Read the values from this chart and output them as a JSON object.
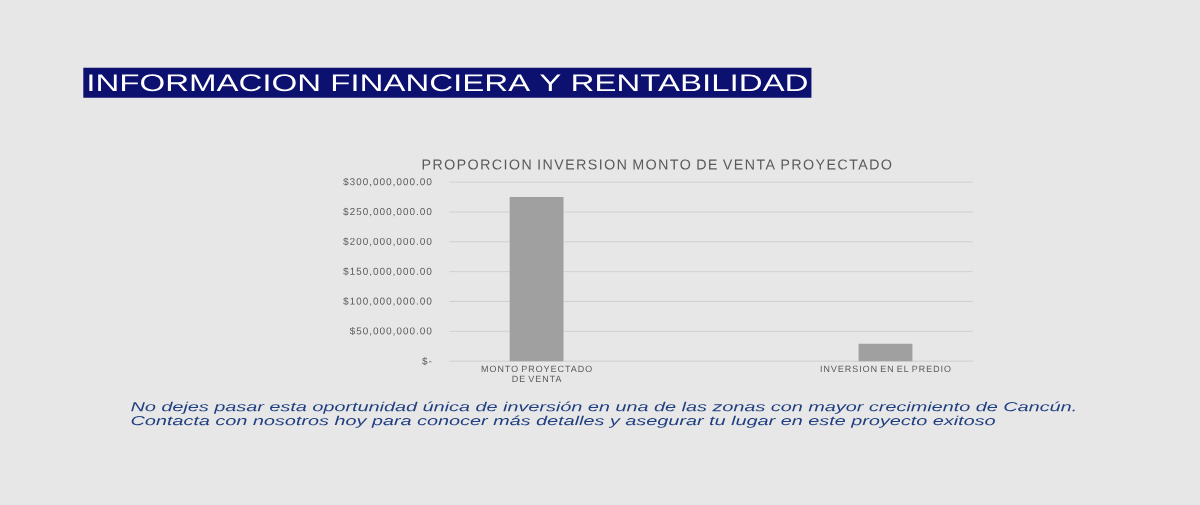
{
  "chart_data": {
    "type": "bar",
    "title": "INFORMACION FINANCIERA Y RENTABILIDAD",
    "subtitle": "PROPORCION INVERSION MONTO DE VENTA PROYECTADO",
    "categories": [
      "MONTO PROYECTADO DE VENTA",
      "INVERSION EN EL PREDIO"
    ],
    "values": [
      275000000,
      29000000
    ],
    "color": "#a0a0a0",
    "ylim": [
      0,
      300000000
    ],
    "yticks": [
      {
        "value": 0,
        "label": "$-"
      },
      {
        "value": 50000000,
        "label": "$50,000,000.00"
      },
      {
        "value": 100000000,
        "label": "$100,000,000.00"
      },
      {
        "value": 150000000,
        "label": "$150,000,000.00"
      },
      {
        "value": 200000000,
        "label": "$200,000,000.00"
      },
      {
        "value": 250000000,
        "label": "$250,000,000.00"
      },
      {
        "value": 300000000,
        "label": "$300,000,000.00"
      }
    ],
    "grid": "y",
    "annotations": [
      "No dejes pasar esta oportunidad única de inversión en una de las zonas con mayor crecimiento de Cancún.",
      "Contacta con nosotros hoy para conocer más detalles y asegurar tu lugar en este proyecto exitoso"
    ]
  }
}
